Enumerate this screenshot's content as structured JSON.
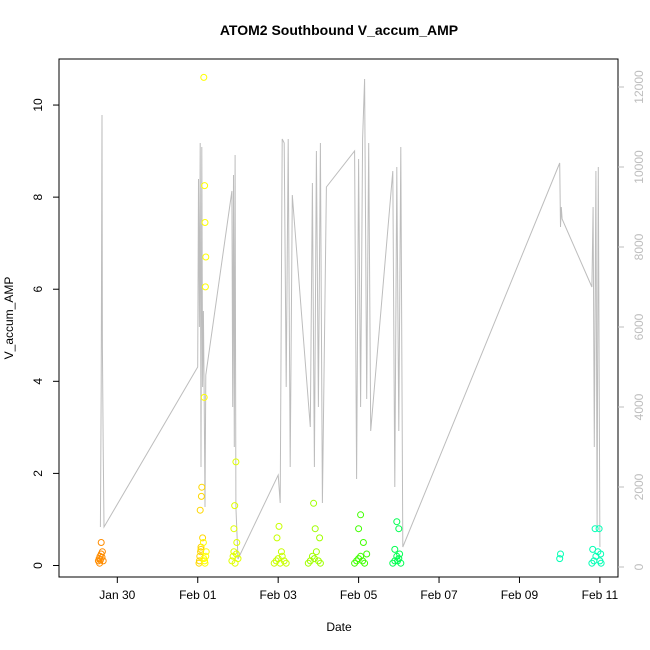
{
  "chart_data": {
    "type": "scatter",
    "title": "ATOM2 Southbound V_accum_AMP",
    "xlabel": "Date",
    "ylabel": "V_accum_AMP",
    "x_ticks": [
      "Jan 30",
      "Feb 01",
      "Feb 03",
      "Feb 05",
      "Feb 07",
      "Feb 09",
      "Feb 11"
    ],
    "x_tick_days": [
      30,
      32,
      34,
      36,
      38,
      40,
      42
    ],
    "xlim": [
      28.55,
      42.45
    ],
    "y_ticks": [
      "0",
      "2",
      "4",
      "6",
      "8",
      "10"
    ],
    "ylim": [
      -0.25,
      11.0
    ],
    "y2_ticks": [
      "0",
      "2000",
      "4000",
      "6000",
      "8000",
      "10000",
      "12000"
    ],
    "y2lim": [
      -250,
      12700
    ],
    "grid": false,
    "legend": "none",
    "colors": {
      "line": "#bdbdbd",
      "axis": "#000000",
      "right_axis": "#bdbdbd",
      "palette": [
        "#ff8c00",
        "#ffd700",
        "#ffff00",
        "#d4ff00",
        "#9aff00",
        "#55ff00",
        "#00ff40",
        "#00ff80",
        "#00ffc8"
      ]
    },
    "series": [
      {
        "color": "#ff8c00",
        "x": [
          29.53,
          29.55,
          29.57,
          29.58,
          29.6,
          29.62,
          29.63,
          29.65,
          29.56,
          29.6
        ],
        "y": [
          0.1,
          0.15,
          0.2,
          0.12,
          0.25,
          0.18,
          0.3,
          0.1,
          0.05,
          0.5
        ]
      },
      {
        "color": "#ffd700",
        "x": [
          32.03,
          32.05,
          32.07,
          32.08,
          32.06,
          32.09,
          32.1,
          32.12,
          32.04,
          32.08
        ],
        "y": [
          0.05,
          0.2,
          0.3,
          0.4,
          1.2,
          1.5,
          1.7,
          0.6,
          0.1,
          0.35
        ]
      },
      {
        "color": "#ffff00",
        "x": [
          32.15,
          32.17,
          32.18,
          32.2,
          32.19,
          32.16,
          32.17,
          32.21,
          32.14,
          32.18,
          32.2,
          32.15
        ],
        "y": [
          10.6,
          8.25,
          7.45,
          6.7,
          6.05,
          3.65,
          0.1,
          0.3,
          0.5,
          0.05,
          0.2,
          0.15
        ]
      },
      {
        "color": "#e0ff00",
        "x": [
          32.85,
          32.88,
          32.9,
          32.92,
          32.95,
          32.97,
          33.0,
          32.9,
          32.93,
          32.96
        ],
        "y": [
          0.1,
          0.2,
          0.3,
          1.3,
          2.25,
          0.5,
          0.15,
          0.8,
          0.05,
          0.25
        ]
      },
      {
        "color": "#c8ff00",
        "x": [
          33.9,
          33.95,
          34.0,
          34.05,
          34.1,
          34.15,
          34.2,
          34.02,
          34.08,
          33.97
        ],
        "y": [
          0.05,
          0.1,
          0.15,
          0.05,
          0.2,
          0.1,
          0.05,
          0.85,
          0.3,
          0.6
        ]
      },
      {
        "color": "#a0ff00",
        "x": [
          34.75,
          34.8,
          34.85,
          34.9,
          34.95,
          35.0,
          35.05,
          34.88,
          34.92,
          35.03
        ],
        "y": [
          0.05,
          0.1,
          0.2,
          0.15,
          0.3,
          0.1,
          0.05,
          1.35,
          0.8,
          0.6
        ]
      },
      {
        "color": "#40ff00",
        "x": [
          35.9,
          35.95,
          36.0,
          36.05,
          36.1,
          36.15,
          36.2,
          36.05,
          36.0,
          36.12
        ],
        "y": [
          0.05,
          0.1,
          0.15,
          0.2,
          0.1,
          0.05,
          0.25,
          1.1,
          0.8,
          0.5
        ]
      },
      {
        "color": "#00ff50",
        "x": [
          36.85,
          36.9,
          36.95,
          37.0,
          37.05,
          36.95,
          37.0,
          36.9,
          37.02,
          36.97
        ],
        "y": [
          0.05,
          0.1,
          0.2,
          0.15,
          0.05,
          0.95,
          0.8,
          0.35,
          0.25,
          0.1
        ]
      },
      {
        "color": "#00ffb4",
        "x": [
          41.0,
          41.02,
          41.8,
          41.85,
          41.9,
          41.95,
          42.0,
          42.03,
          41.88,
          41.98,
          41.82,
          42.02
        ],
        "y": [
          0.15,
          0.25,
          0.05,
          0.1,
          0.2,
          0.3,
          0.1,
          0.05,
          0.8,
          0.8,
          0.35,
          0.25
        ]
      }
    ],
    "line_y2": {
      "x": [
        29.58,
        29.6,
        29.62,
        29.63,
        29.65,
        29.67,
        32.0,
        32.02,
        32.04,
        32.06,
        32.08,
        32.1,
        32.12,
        32.14,
        32.16,
        32.18,
        32.2,
        32.85,
        32.87,
        32.89,
        32.91,
        32.93,
        32.95,
        33.0,
        34.0,
        34.05,
        34.1,
        34.15,
        34.2,
        34.25,
        34.3,
        34.35,
        34.8,
        34.85,
        34.9,
        34.95,
        35.0,
        35.05,
        35.1,
        35.2,
        35.9,
        35.95,
        36.0,
        36.05,
        36.1,
        36.15,
        36.2,
        36.25,
        36.3,
        36.85,
        36.9,
        36.95,
        37.0,
        37.05,
        37.1,
        41.0,
        41.02,
        41.04,
        41.06,
        41.8,
        41.83,
        41.86,
        41.9,
        41.93,
        41.96,
        42.0
      ],
      "y": [
        1000,
        4500,
        11300,
        5500,
        3000,
        1000,
        5000,
        9700,
        6000,
        10600,
        2500,
        10500,
        4500,
        6400,
        4200,
        1500,
        4800,
        9400,
        4000,
        9800,
        3000,
        10300,
        1500,
        200,
        2300,
        1600,
        10700,
        10600,
        4500,
        10700,
        2500,
        9300,
        3500,
        9600,
        2500,
        10400,
        4000,
        10600,
        1600,
        9500,
        10400,
        2200,
        10200,
        4000,
        10700,
        12200,
        4200,
        10600,
        3400,
        9900,
        2000,
        10000,
        3400,
        10500,
        500,
        10100,
        8500,
        9000,
        8700,
        7000,
        9000,
        3000,
        9900,
        1000,
        10000,
        500
      ]
    }
  }
}
